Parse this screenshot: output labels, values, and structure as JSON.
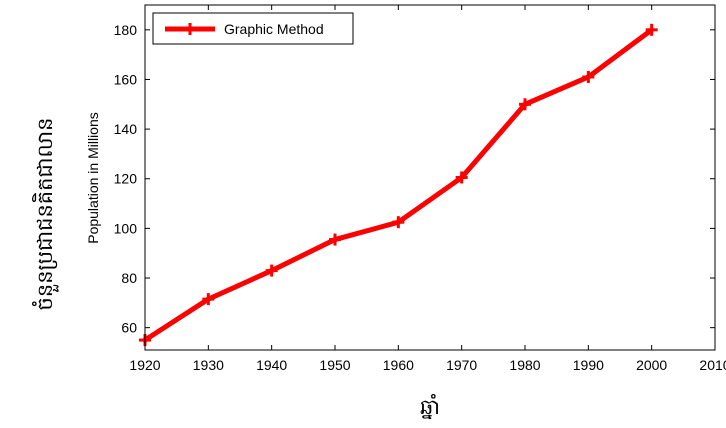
{
  "chart_data": {
    "type": "line",
    "x": [
      1920,
      1930,
      1940,
      1950,
      1960,
      1970,
      1980,
      1990,
      2000
    ],
    "series": [
      {
        "name": "Graphic Method",
        "values": [
          55,
          71.5,
          83,
          95.5,
          102.5,
          120.5,
          150,
          161,
          180
        ],
        "color": "#ff0000",
        "marker": "plus"
      }
    ],
    "ylabel": "Population in Millions",
    "xlim": [
      1920,
      2010
    ],
    "ylim": [
      51,
      190
    ],
    "xticks": [
      1920,
      1930,
      1940,
      1950,
      1960,
      1970,
      1980,
      1990,
      2000,
      2010
    ],
    "yticks": [
      60,
      80,
      100,
      120,
      140,
      160,
      180
    ],
    "grid": false,
    "legend": "top-left"
  },
  "outer_labels": {
    "left": "ចំនួនប្រជាជនគិតជាលាន",
    "bottom": "ឆ្នាំ"
  }
}
